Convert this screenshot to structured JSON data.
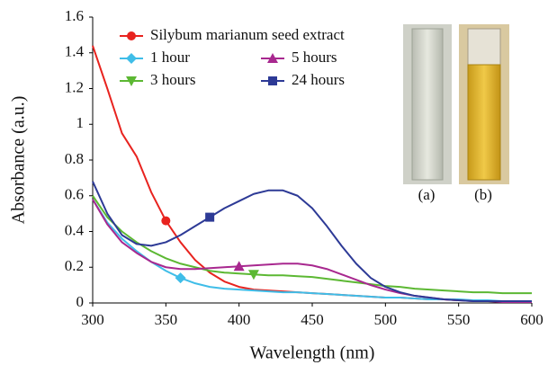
{
  "chart_data": {
    "type": "line",
    "xlabel": "Wavelength (nm)",
    "ylabel": "Absorbance (a.u.)",
    "x": [
      300,
      310,
      320,
      330,
      340,
      350,
      360,
      370,
      380,
      390,
      400,
      410,
      420,
      430,
      440,
      450,
      460,
      470,
      480,
      490,
      500,
      510,
      520,
      530,
      540,
      550,
      560,
      570,
      580,
      590,
      600
    ],
    "xlim": [
      300,
      600
    ],
    "xticks": [
      300,
      350,
      400,
      450,
      500,
      550,
      600
    ],
    "ylim": [
      0,
      1.6
    ],
    "yticks": [
      0,
      0.2,
      0.4,
      0.6,
      0.8,
      1,
      1.2,
      1.4,
      1.6
    ],
    "annotations": [
      "(a)",
      "(b)"
    ],
    "series": [
      {
        "name": "Silybum marianum seed extract",
        "color": "#e8231f",
        "marker": "circle",
        "marker_index": 5,
        "values": [
          1.44,
          1.2,
          0.95,
          0.82,
          0.62,
          0.46,
          0.34,
          0.24,
          0.17,
          0.12,
          0.09,
          0.075,
          0.07,
          0.065,
          0.06,
          0.055,
          0.05,
          0.045,
          0.04,
          0.035,
          0.03,
          0.03,
          0.025,
          0.02,
          0.02,
          0.015,
          0.015,
          0.01,
          0.01,
          0.01,
          0.01
        ]
      },
      {
        "name": "1 hour",
        "color": "#3fbde8",
        "marker": "diamond",
        "marker_index": 6,
        "values": [
          0.58,
          0.45,
          0.36,
          0.29,
          0.23,
          0.18,
          0.14,
          0.11,
          0.09,
          0.08,
          0.075,
          0.07,
          0.065,
          0.06,
          0.06,
          0.055,
          0.05,
          0.045,
          0.04,
          0.035,
          0.03,
          0.03,
          0.025,
          0.02,
          0.02,
          0.02,
          0.015,
          0.015,
          0.01,
          0.01,
          0.01
        ]
      },
      {
        "name": "3 hours",
        "color": "#5cb833",
        "marker": "triangle-down",
        "marker_index": 11,
        "values": [
          0.6,
          0.48,
          0.4,
          0.34,
          0.29,
          0.25,
          0.22,
          0.2,
          0.18,
          0.17,
          0.165,
          0.16,
          0.155,
          0.155,
          0.15,
          0.145,
          0.135,
          0.125,
          0.115,
          0.105,
          0.095,
          0.09,
          0.08,
          0.075,
          0.07,
          0.065,
          0.06,
          0.06,
          0.055,
          0.055,
          0.055
        ]
      },
      {
        "name": "5 hours",
        "color": "#a8288f",
        "marker": "triangle-up",
        "marker_index": 10,
        "values": [
          0.58,
          0.44,
          0.34,
          0.28,
          0.23,
          0.2,
          0.19,
          0.19,
          0.195,
          0.2,
          0.205,
          0.21,
          0.215,
          0.22,
          0.22,
          0.21,
          0.19,
          0.16,
          0.13,
          0.1,
          0.075,
          0.055,
          0.04,
          0.03,
          0.02,
          0.015,
          0.01,
          0.01,
          0.005,
          0.005,
          0.005
        ]
      },
      {
        "name": "24 hours",
        "color": "#2d3a96",
        "marker": "square",
        "marker_index": 8,
        "values": [
          0.68,
          0.5,
          0.38,
          0.33,
          0.32,
          0.34,
          0.38,
          0.43,
          0.48,
          0.53,
          0.57,
          0.61,
          0.63,
          0.63,
          0.6,
          0.53,
          0.43,
          0.32,
          0.22,
          0.14,
          0.09,
          0.06,
          0.04,
          0.03,
          0.02,
          0.015,
          0.01,
          0.01,
          0.01,
          0.01,
          0.01
        ]
      }
    ]
  }
}
